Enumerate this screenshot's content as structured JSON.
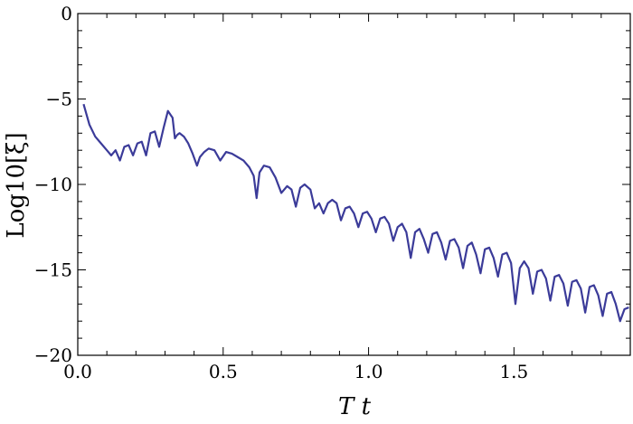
{
  "chart_data": {
    "type": "line",
    "title": "",
    "xlabel": "T t",
    "ylabel": "Log10[ξ]",
    "xlim": [
      0.0,
      1.9
    ],
    "ylim": [
      -20,
      0
    ],
    "x_ticks": [
      0.0,
      0.5,
      1.0,
      1.5
    ],
    "x_tick_labels": [
      "0.0",
      "0.5",
      "1.0",
      "1.5"
    ],
    "y_ticks": [
      0,
      -5,
      -10,
      -15,
      -20
    ],
    "y_tick_labels": [
      "0",
      "−5",
      "−10",
      "−15",
      "−20"
    ],
    "grid": false,
    "line_color": "#3b3b99",
    "series": [
      {
        "x": [
          0.02,
          0.04,
          0.06,
          0.08,
          0.1,
          0.115,
          0.13,
          0.145,
          0.16,
          0.175,
          0.19,
          0.205,
          0.22,
          0.235,
          0.25,
          0.265,
          0.28,
          0.295,
          0.31,
          0.318,
          0.326,
          0.334,
          0.342,
          0.35,
          0.365,
          0.38,
          0.395,
          0.41,
          0.42,
          0.435,
          0.45,
          0.47,
          0.49,
          0.51,
          0.53,
          0.55,
          0.57,
          0.59,
          0.605,
          0.615,
          0.625,
          0.64,
          0.66,
          0.68,
          0.7,
          0.72,
          0.735,
          0.75,
          0.765,
          0.78,
          0.8,
          0.815,
          0.83,
          0.845,
          0.86,
          0.875,
          0.89,
          0.905,
          0.92,
          0.935,
          0.95,
          0.965,
          0.98,
          0.995,
          1.01,
          1.025,
          1.04,
          1.055,
          1.07,
          1.085,
          1.1,
          1.115,
          1.13,
          1.145,
          1.16,
          1.175,
          1.19,
          1.205,
          1.22,
          1.235,
          1.25,
          1.265,
          1.28,
          1.295,
          1.31,
          1.325,
          1.34,
          1.355,
          1.37,
          1.385,
          1.4,
          1.415,
          1.43,
          1.445,
          1.46,
          1.475,
          1.49,
          1.505,
          1.52,
          1.535,
          1.55,
          1.565,
          1.58,
          1.595,
          1.61,
          1.625,
          1.64,
          1.655,
          1.67,
          1.685,
          1.7,
          1.715,
          1.73,
          1.745,
          1.76,
          1.775,
          1.79,
          1.805,
          1.82,
          1.835,
          1.85,
          1.865,
          1.88,
          1.895
        ],
        "y": [
          -5.3,
          -6.5,
          -7.2,
          -7.6,
          -8.0,
          -8.3,
          -8.0,
          -8.6,
          -7.8,
          -7.7,
          -8.3,
          -7.6,
          -7.5,
          -8.3,
          -7.0,
          -6.9,
          -7.8,
          -6.7,
          -5.7,
          -5.9,
          -6.1,
          -7.3,
          -7.1,
          -7.0,
          -7.2,
          -7.6,
          -8.2,
          -8.9,
          -8.4,
          -8.1,
          -7.9,
          -8.0,
          -8.6,
          -8.1,
          -8.2,
          -8.4,
          -8.6,
          -9.0,
          -9.5,
          -10.8,
          -9.3,
          -8.9,
          -9.0,
          -9.6,
          -10.5,
          -10.1,
          -10.3,
          -11.3,
          -10.2,
          -10.0,
          -10.3,
          -11.4,
          -11.1,
          -11.7,
          -11.1,
          -10.9,
          -11.1,
          -12.1,
          -11.4,
          -11.3,
          -11.7,
          -12.5,
          -11.7,
          -11.6,
          -12.0,
          -12.8,
          -12.0,
          -11.9,
          -12.3,
          -13.3,
          -12.5,
          -12.3,
          -12.8,
          -14.3,
          -12.8,
          -12.6,
          -13.2,
          -14.0,
          -12.9,
          -12.8,
          -13.4,
          -14.4,
          -13.3,
          -13.2,
          -13.7,
          -14.9,
          -13.6,
          -13.4,
          -14.1,
          -15.2,
          -13.8,
          -13.7,
          -14.3,
          -15.4,
          -14.1,
          -14.0,
          -14.6,
          -17.0,
          -14.9,
          -14.5,
          -14.9,
          -16.4,
          -15.1,
          -15.0,
          -15.5,
          -16.8,
          -15.4,
          -15.3,
          -15.8,
          -17.1,
          -15.7,
          -15.6,
          -16.1,
          -17.5,
          -16.0,
          -15.9,
          -16.5,
          -17.7,
          -16.4,
          -16.3,
          -17.0,
          -18.0,
          -17.3,
          -17.2
        ]
      }
    ]
  }
}
